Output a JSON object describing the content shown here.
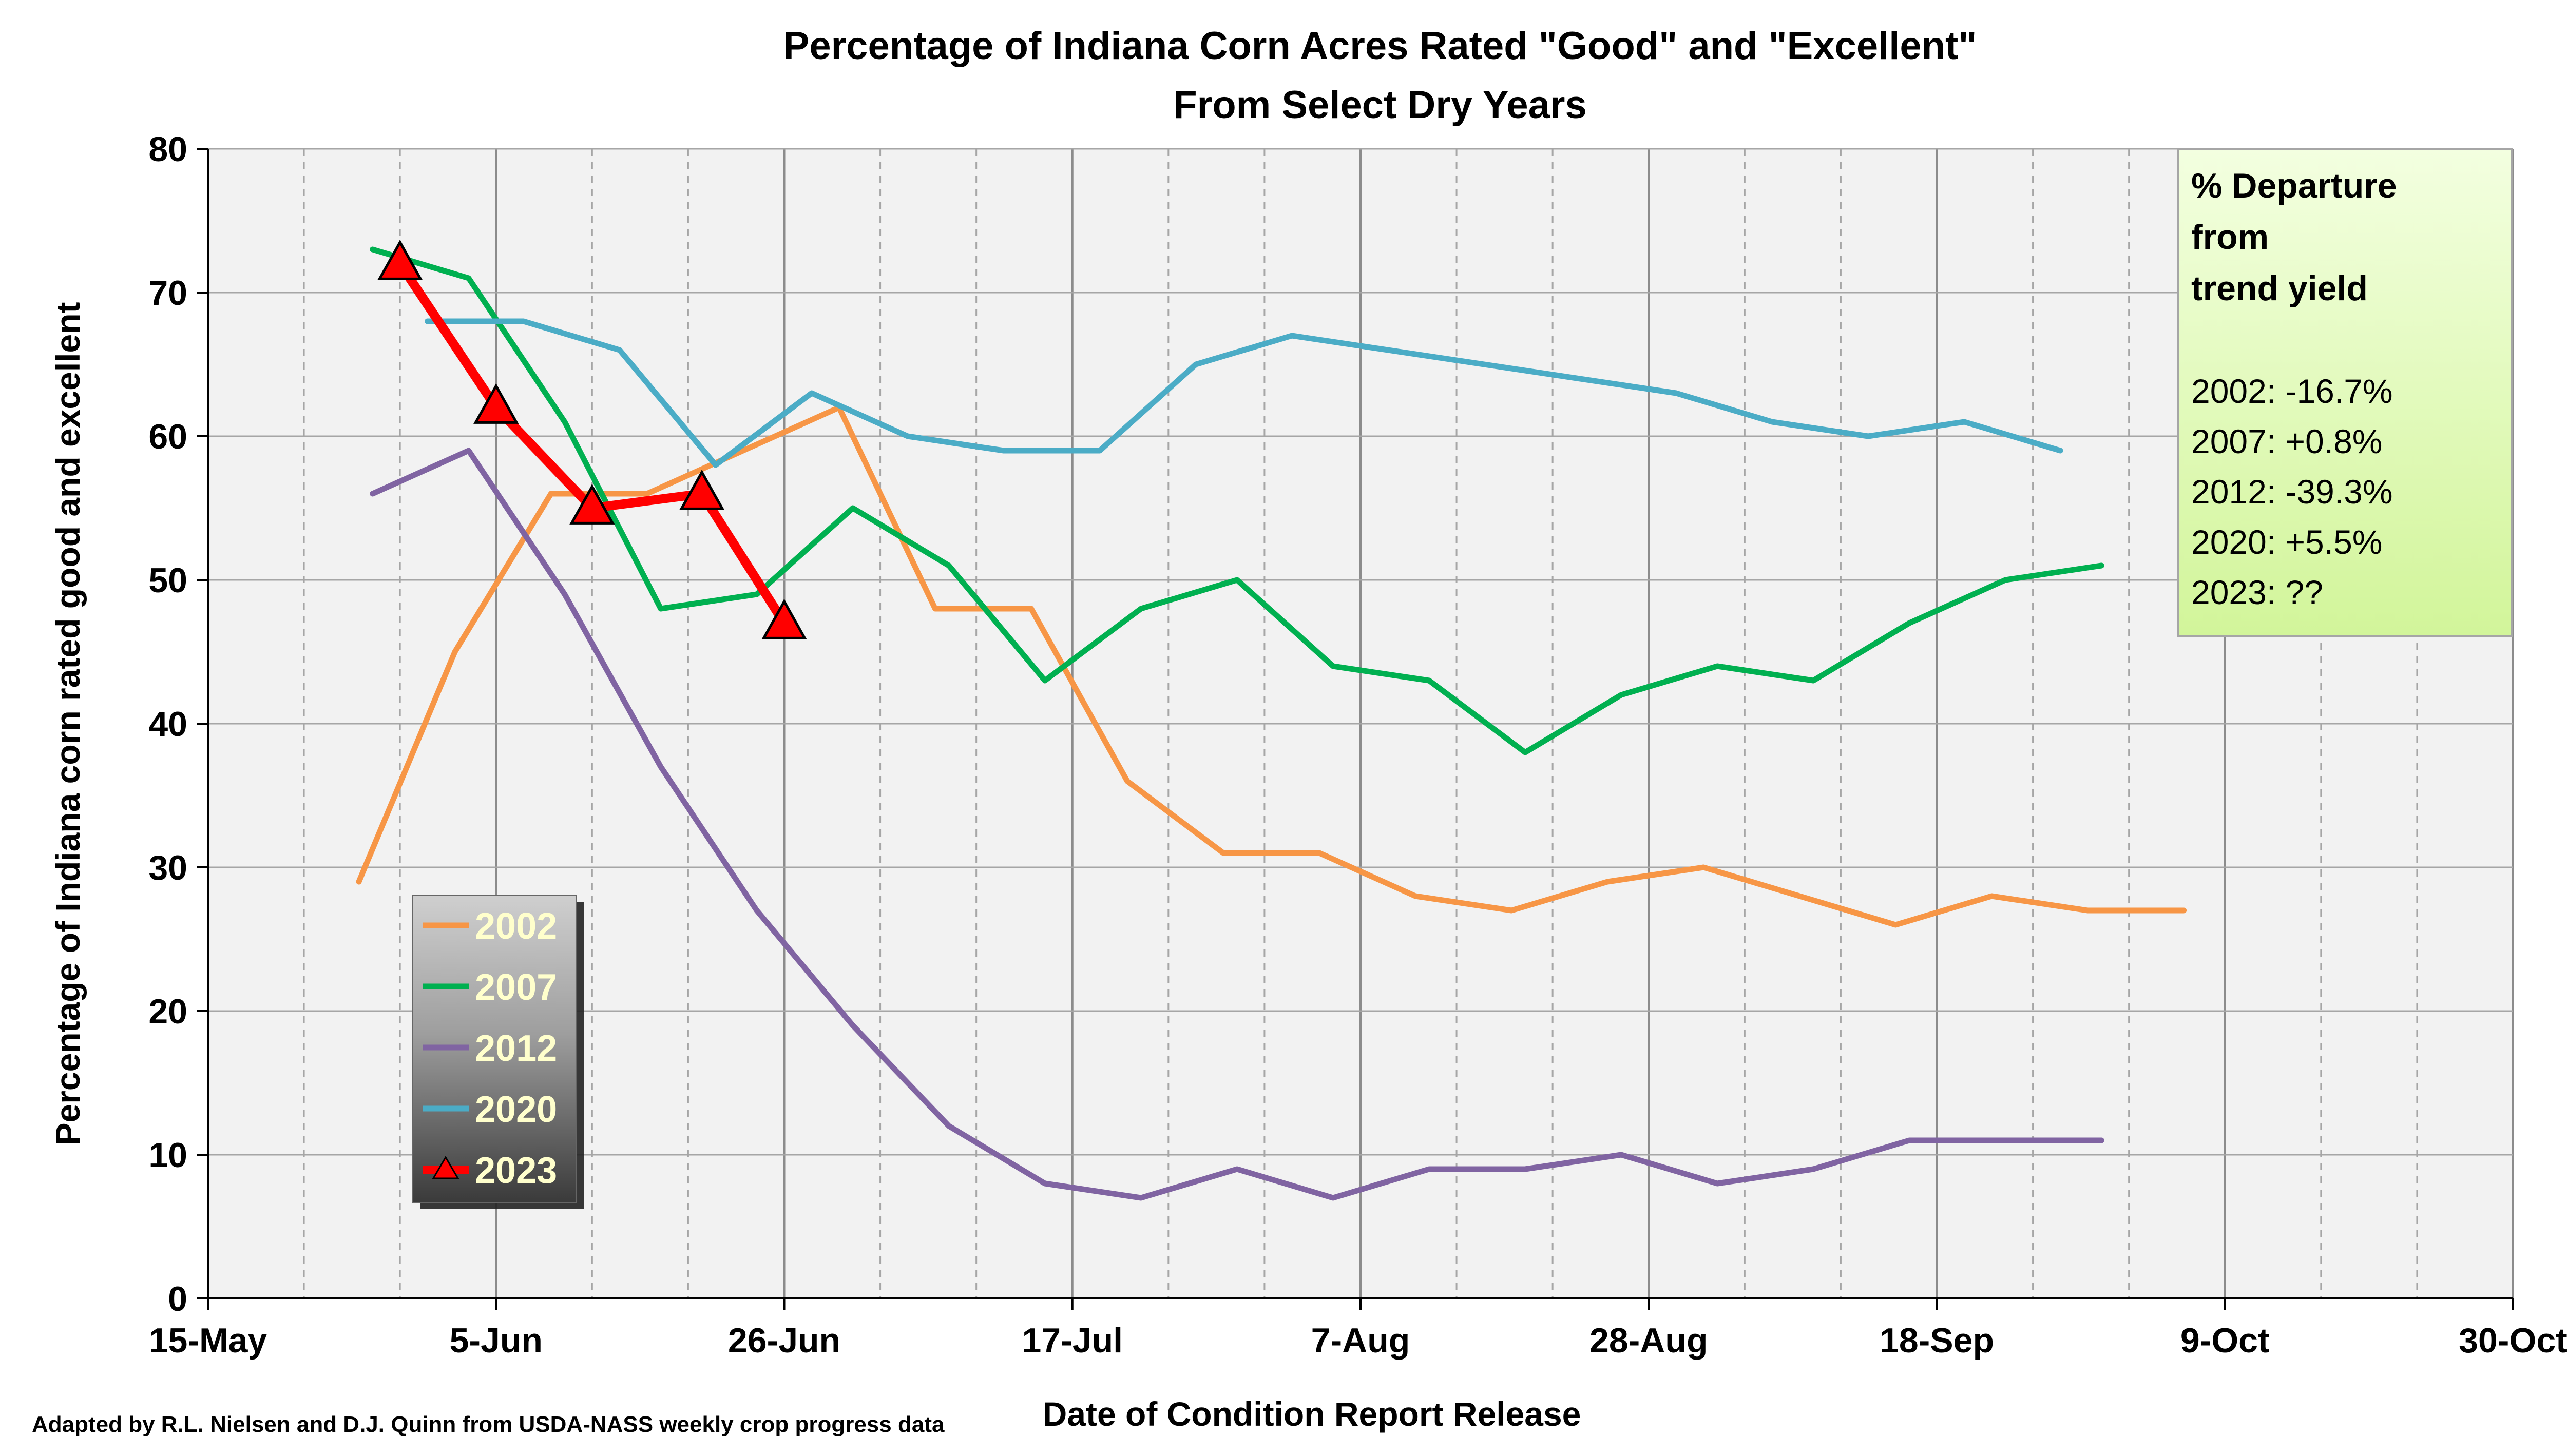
{
  "chart_data": {
    "type": "line",
    "title": "Percentage of Indiana Corn Acres Rated \"Good\" and \"Excellent\"",
    "subtitle": "From Select Dry Years",
    "xlabel": "Date of Condition Report Release",
    "ylabel": "Percentage of Indiana corn rated good and excellent",
    "x_tick_labels": [
      "15-May",
      "5-Jun",
      "26-Jun",
      "17-Jul",
      "7-Aug",
      "28-Aug",
      "18-Sep",
      "9-Oct",
      "30-Oct"
    ],
    "y_tick_labels": [
      "0",
      "10",
      "20",
      "30",
      "40",
      "50",
      "60",
      "70",
      "80"
    ],
    "ylim": [
      0,
      80
    ],
    "xlim": [
      "15-May",
      "30-Oct"
    ],
    "grid": true,
    "legend_position": "lower-left",
    "series": [
      {
        "name": "2002",
        "color": "#F79646",
        "marker": "none",
        "x": [
          "26-May",
          "2-Jun",
          "9-Jun",
          "16-Jun",
          "23-Jun",
          "30-Jun",
          "7-Jul",
          "14-Jul",
          "21-Jul",
          "28-Jul",
          "4-Aug",
          "11-Aug",
          "18-Aug",
          "25-Aug",
          "1-Sep",
          "8-Sep",
          "15-Sep",
          "22-Sep",
          "29-Sep",
          "6-Oct"
        ],
        "y": [
          29,
          45,
          56,
          56,
          59,
          62,
          48,
          48,
          36,
          31,
          31,
          28,
          27,
          29,
          30,
          28,
          26,
          28,
          27,
          27
        ]
      },
      {
        "name": "2007",
        "color": "#00B050",
        "marker": "none",
        "x": [
          "27-May",
          "3-Jun",
          "10-Jun",
          "17-Jun",
          "24-Jun",
          "1-Jul",
          "8-Jul",
          "15-Jul",
          "22-Jul",
          "29-Jul",
          "5-Aug",
          "12-Aug",
          "19-Aug",
          "26-Aug",
          "2-Sep",
          "9-Sep",
          "16-Sep",
          "23-Sep",
          "30-Sep"
        ],
        "y": [
          73,
          71,
          61,
          48,
          49,
          55,
          51,
          43,
          48,
          50,
          44,
          43,
          38,
          42,
          44,
          43,
          47,
          50,
          51
        ]
      },
      {
        "name": "2012",
        "color": "#8064A2",
        "marker": "none",
        "x": [
          "27-May",
          "3-Jun",
          "10-Jun",
          "17-Jun",
          "24-Jun",
          "1-Jul",
          "8-Jul",
          "15-Jul",
          "22-Jul",
          "29-Jul",
          "5-Aug",
          "12-Aug",
          "19-Aug",
          "26-Aug",
          "2-Sep",
          "9-Sep",
          "16-Sep",
          "23-Sep",
          "30-Sep"
        ],
        "y": [
          56,
          59,
          49,
          37,
          27,
          19,
          12,
          8,
          7,
          9,
          7,
          9,
          9,
          10,
          8,
          9,
          11,
          11,
          11
        ]
      },
      {
        "name": "2020",
        "color": "#4BACC6",
        "marker": "none",
        "x": [
          "31-May",
          "7-Jun",
          "14-Jun",
          "21-Jun",
          "28-Jun",
          "5-Jul",
          "12-Jul",
          "19-Jul",
          "26-Jul",
          "2-Aug",
          "30-Aug",
          "6-Sep",
          "13-Sep",
          "20-Sep",
          "27-Sep"
        ],
        "y": [
          68,
          68,
          66,
          58,
          63,
          60,
          59,
          59,
          65,
          67,
          63,
          61,
          60,
          61,
          59
        ]
      },
      {
        "name": "2023",
        "color": "#FF0000",
        "marker": "triangle",
        "x": [
          "29-May",
          "5-Jun",
          "12-Jun",
          "20-Jun",
          "26-Jun"
        ],
        "y": [
          72,
          62,
          55,
          56,
          47
        ]
      }
    ],
    "annotation": {
      "heading": [
        "% Departure",
        "from",
        "trend yield"
      ],
      "lines": [
        "2002: -16.7%",
        "2007: +0.8%",
        "2012: -39.3%",
        "2020: +5.5%",
        "2023: ??"
      ]
    },
    "credit": "Adapted by R.L. Nielsen and D.J. Quinn from USDA-NASS weekly crop progress data",
    "colors": {
      "plot_background": "#F2F2F2",
      "gridline": "#A6A6A6",
      "annotation_fill": "#D9F7A6",
      "legend_text": "#FFFFCC"
    }
  }
}
